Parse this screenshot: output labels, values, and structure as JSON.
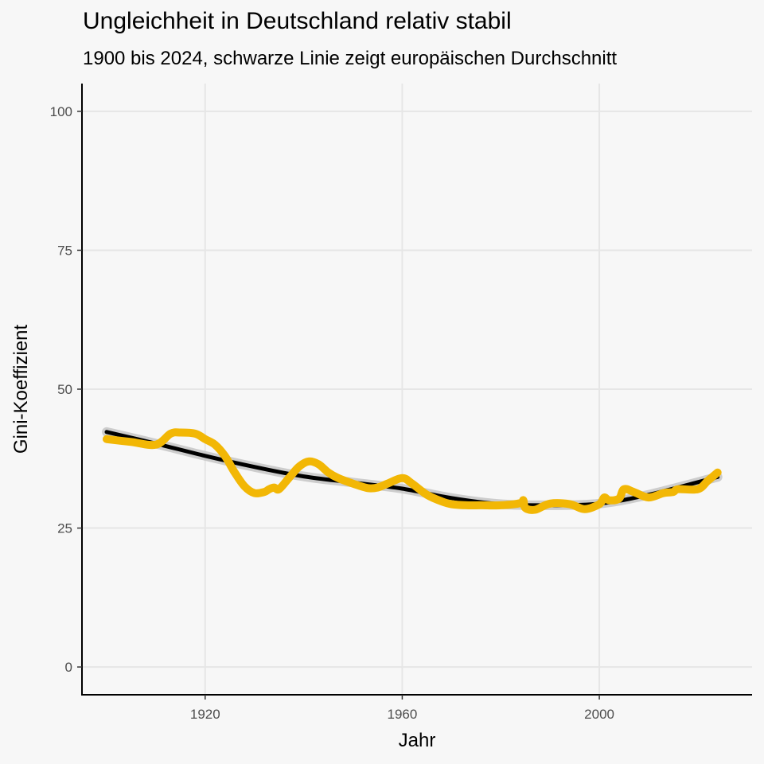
{
  "chart_data": {
    "type": "line",
    "title": "Ungleichheit in Deutschland relativ stabil",
    "subtitle": "1900 bis 2024, schwarze Linie zeigt europäischen Durchschnitt",
    "xlabel": "Jahr",
    "ylabel": "Gini-Koeffizient",
    "xlim": [
      1895,
      2031
    ],
    "ylim": [
      -5,
      105
    ],
    "xticks": [
      1920,
      1960,
      2000
    ],
    "yticks": [
      0,
      25,
      50,
      75,
      100
    ],
    "grid": true,
    "colors": {
      "germany": "#f2b705",
      "europe": "#000000",
      "band": "#c8c8c8",
      "grid": "#e6e6e6",
      "background": "#f7f7f7"
    },
    "series": [
      {
        "x": [
          1900,
          1905,
          1910,
          1913,
          1915,
          1918,
          1920,
          1922,
          1924,
          1926,
          1928,
          1930,
          1932,
          1933,
          1934,
          1935,
          1937,
          1939,
          1941,
          1943,
          1945,
          1947,
          1950,
          1953,
          1955,
          1957,
          1960,
          1962,
          1965,
          1968,
          1970,
          1973,
          1976,
          1980,
          1984,
          1984.6,
          1985,
          1987,
          1990,
          1994,
          1997,
          2000,
          2001,
          2002,
          2004,
          2005,
          2007,
          2010,
          2013,
          2015,
          2016,
          2020,
          2022,
          2024
        ],
        "y": [
          41,
          40.5,
          40,
          42,
          42.2,
          42,
          41,
          40,
          38,
          35,
          32.5,
          31.3,
          31.5,
          32,
          32.3,
          32,
          34,
          36,
          37,
          36.5,
          35,
          34,
          33,
          32.2,
          32.3,
          33,
          34,
          33,
          31,
          29.8,
          29.3,
          29.1,
          29.1,
          29.1,
          29.5,
          30,
          28.6,
          28.3,
          29.4,
          29.3,
          28.4,
          29.3,
          30.5,
          30,
          30.3,
          32,
          31.5,
          30.5,
          31.3,
          31.5,
          32,
          32,
          33.5,
          35
        ]
      },
      {
        "x": [
          1900,
          1910,
          1920,
          1930,
          1940,
          1950,
          1960,
          1970,
          1980,
          1990,
          2000,
          2010,
          2024
        ],
        "y": [
          42.3,
          40.2,
          38,
          36,
          34.3,
          33.2,
          32.1,
          30.4,
          29.3,
          29.1,
          29.4,
          31,
          34.2
        ]
      }
    ]
  }
}
